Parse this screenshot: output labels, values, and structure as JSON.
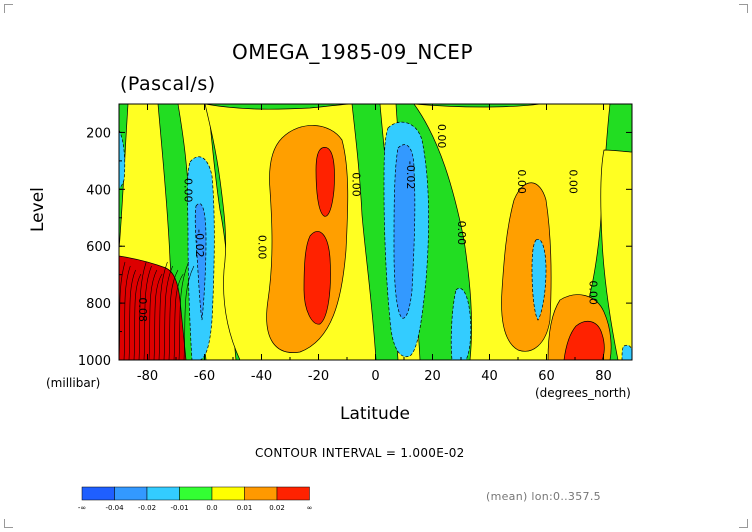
{
  "chart_data": {
    "type": "heatmap",
    "title": "OMEGA_1985-09_NCEP",
    "units": "(Pascal/s)",
    "xlabel": "Latitude",
    "xunit": "(degrees_north)",
    "ylabel": "Level",
    "yunit": "(millibar)",
    "xlim": [
      -90,
      90
    ],
    "ylim": [
      1000,
      100
    ],
    "xticks": [
      "-80",
      "-60",
      "-40",
      "-20",
      "0",
      "20",
      "40",
      "60",
      "80"
    ],
    "xtick_values": [
      -80,
      -60,
      -40,
      -20,
      0,
      20,
      40,
      60,
      80
    ],
    "yticks": [
      "200",
      "400",
      "600",
      "800",
      "1000"
    ],
    "ytick_values": [
      200,
      400,
      600,
      800,
      1000
    ],
    "contour_interval_text": "CONTOUR INTERVAL = 1.000E-02",
    "contour_labels": [
      {
        "text": "0.00",
        "lat": -67,
        "lev": 360
      },
      {
        "text": "-0.02",
        "lat": -63,
        "lev": 540
      },
      {
        "text": "0.00",
        "lat": -41,
        "lev": 560
      },
      {
        "text": "0.00",
        "lat": -8,
        "lev": 340
      },
      {
        "text": "0.00",
        "lat": 22,
        "lev": 170
      },
      {
        "text": "-0.02",
        "lat": 11,
        "lev": 300
      },
      {
        "text": "0.00",
        "lat": 29,
        "lev": 510
      },
      {
        "text": "0.00",
        "lat": 50,
        "lev": 330
      },
      {
        "text": "0.00",
        "lat": 68,
        "lev": 330
      },
      {
        "text": "0.00",
        "lat": 75,
        "lev": 720
      },
      {
        "text": "0.08",
        "lat": -83,
        "lev": 780
      }
    ],
    "colorbar": {
      "labels": [
        "-∞",
        "-0.04",
        "-0.02",
        "-0.01",
        "0.0",
        "0.01",
        "0.02",
        "∞"
      ],
      "colors": [
        "#1f5fff",
        "#3399ff",
        "#33ccff",
        "#33ff33",
        "#ffff00",
        "#ff9900",
        "#ff2200"
      ]
    },
    "levels": {
      "strong_up": "#1f5fff",
      "up": "#3399ff",
      "weak_up": "#33ccff",
      "near_zero": "#22dd22",
      "weak_down": "#ffff22",
      "down": "#ff9f00",
      "strong_down": "#ff2200",
      "extreme": "#dd0000"
    }
  },
  "mean_text": "(mean) lon:0..357.5"
}
